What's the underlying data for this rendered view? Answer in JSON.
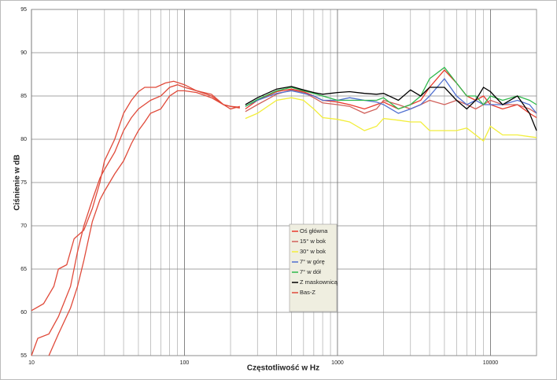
{
  "chart_data": {
    "type": "line",
    "x_label": "Częstotliwość w Hz",
    "y_label": "Ciśnienie w dB",
    "xscale": "log",
    "xlim": [
      10,
      20000
    ],
    "xticks": [
      10,
      100,
      1000,
      10000
    ],
    "ylim": [
      55,
      95
    ],
    "yticks": [
      55,
      60,
      65,
      70,
      75,
      80,
      85,
      90,
      95
    ],
    "grid": true,
    "legend": true,
    "series": [
      {
        "name": "Oś główna",
        "color": "#e8392c",
        "x": [
          250,
          300,
          400,
          500,
          600,
          700,
          800,
          1000,
          1200,
          1500,
          1800,
          2000,
          2500,
          3000,
          3500,
          4000,
          5000,
          6000,
          7000,
          8000,
          9000,
          10000,
          12000,
          15000,
          18000,
          20000
        ],
        "values": [
          83.5,
          84.5,
          85.5,
          85.8,
          85.5,
          85,
          84.5,
          84.3,
          84,
          83.5,
          84,
          84.3,
          83.5,
          84,
          84.5,
          86,
          88,
          86.5,
          85,
          84.5,
          85,
          84,
          83.5,
          84,
          83,
          82.5
        ]
      },
      {
        "name": "15° w bok",
        "color": "#d0605a",
        "x": [
          250,
          300,
          400,
          500,
          600,
          700,
          800,
          1000,
          1200,
          1500,
          1800,
          2000,
          2500,
          3000,
          3500,
          4000,
          5000,
          6000,
          7000,
          8000,
          9000,
          10000,
          12000,
          15000,
          18000,
          20000
        ],
        "values": [
          83.2,
          84,
          85.2,
          85.7,
          85.4,
          84.8,
          84.2,
          84,
          83.8,
          83,
          83.5,
          84.5,
          84,
          83.5,
          84,
          84.5,
          84,
          84.5,
          84,
          83.5,
          84,
          84.5,
          84,
          84,
          83.5,
          83
        ]
      },
      {
        "name": "30° w bok",
        "color": "#f2ee3c",
        "x": [
          250,
          300,
          400,
          500,
          600,
          700,
          800,
          1000,
          1200,
          1500,
          1800,
          2000,
          2500,
          3000,
          3500,
          4000,
          5000,
          6000,
          7000,
          8000,
          9000,
          10000,
          12000,
          15000,
          18000,
          20000
        ],
        "values": [
          82.4,
          83,
          84.5,
          84.8,
          84.5,
          83.5,
          82.5,
          82.3,
          82,
          81,
          81.5,
          82.4,
          82.2,
          82,
          82,
          81,
          81,
          81,
          81.3,
          80.5,
          79.8,
          81.5,
          80.5,
          80.5,
          80.3,
          80.2
        ]
      },
      {
        "name": "7° w górę",
        "color": "#4f6fd0",
        "x": [
          250,
          300,
          400,
          500,
          600,
          700,
          800,
          1000,
          1200,
          1500,
          1800,
          2000,
          2500,
          3000,
          3500,
          4000,
          5000,
          6000,
          7000,
          8000,
          9000,
          10000,
          12000,
          15000,
          18000,
          20000
        ],
        "values": [
          83.8,
          84.5,
          85.3,
          85.6,
          85.3,
          85,
          84.5,
          84.5,
          84.8,
          84.5,
          84.3,
          84,
          83,
          83.5,
          84,
          85,
          87,
          85,
          84,
          84.5,
          84,
          84,
          84,
          84.5,
          84,
          83
        ]
      },
      {
        "name": "7° w dół",
        "color": "#2eb84b",
        "x": [
          250,
          300,
          400,
          500,
          600,
          700,
          800,
          1000,
          1200,
          1500,
          1800,
          2000,
          2500,
          3000,
          3500,
          4000,
          5000,
          6000,
          7000,
          8000,
          9000,
          10000,
          12000,
          15000,
          18000,
          20000
        ],
        "values": [
          83.8,
          84.6,
          85.6,
          86,
          85.6,
          85.3,
          85,
          84.5,
          84.5,
          84.5,
          84.5,
          84.8,
          83.5,
          84,
          85,
          87,
          88.3,
          86.5,
          85,
          85,
          84,
          85,
          84.5,
          85,
          84.5,
          84
        ]
      },
      {
        "name": "Z maskownicą",
        "color": "#000000",
        "x": [
          250,
          300,
          400,
          500,
          600,
          700,
          800,
          1000,
          1200,
          1500,
          1800,
          2000,
          2500,
          3000,
          3500,
          4000,
          5000,
          6000,
          7000,
          8000,
          9000,
          10000,
          12000,
          15000,
          18000,
          20000
        ],
        "values": [
          84,
          84.8,
          85.8,
          86.1,
          85.7,
          85.4,
          85.2,
          85.4,
          85.5,
          85.3,
          85.2,
          85.3,
          84.5,
          85.7,
          85,
          86,
          86,
          84.5,
          83.5,
          84.5,
          86,
          85.5,
          84,
          85,
          83,
          81
        ]
      },
      {
        "name": "Bas-Z",
        "color": "#e04a3a",
        "x": [
          10,
          12,
          14,
          15,
          17,
          19,
          22,
          25,
          28,
          30,
          35,
          40,
          45,
          50,
          55,
          65,
          75,
          85,
          100,
          120,
          150,
          180,
          200,
          230
        ],
        "values": [
          60.2,
          61,
          63,
          65,
          65.5,
          68.5,
          69.5,
          72,
          75,
          77.5,
          80,
          83,
          84.5,
          85.5,
          86,
          86,
          86.5,
          86.7,
          86.3,
          85.6,
          85.2,
          84,
          83.8,
          83.6
        ]
      },
      {
        "color": "#e04a3a",
        "x": [
          10,
          11,
          13,
          15,
          18,
          20,
          22,
          25,
          28,
          30,
          35,
          40,
          45,
          50,
          60,
          70,
          80,
          90,
          100,
          120,
          150,
          180,
          200,
          230
        ],
        "values": [
          55,
          57,
          57.5,
          59.5,
          63,
          67,
          70,
          73,
          75.5,
          76.5,
          78.5,
          81,
          82.5,
          83.5,
          84.5,
          85,
          86,
          86.3,
          86,
          85.6,
          85,
          84,
          83.8,
          83.7
        ]
      },
      {
        "color": "#e04a3a",
        "x": [
          13,
          15,
          18,
          20,
          22,
          25,
          28,
          30,
          35,
          40,
          45,
          50,
          55,
          60,
          70,
          80,
          90,
          100,
          120,
          150,
          180,
          200,
          230
        ],
        "values": [
          55,
          57.5,
          60.5,
          63,
          66,
          70.5,
          73,
          74,
          76,
          77.5,
          79.5,
          81,
          82,
          83,
          83.5,
          85,
          85.6,
          85.6,
          85.4,
          84.8,
          84,
          83.5,
          83.8
        ]
      }
    ]
  }
}
